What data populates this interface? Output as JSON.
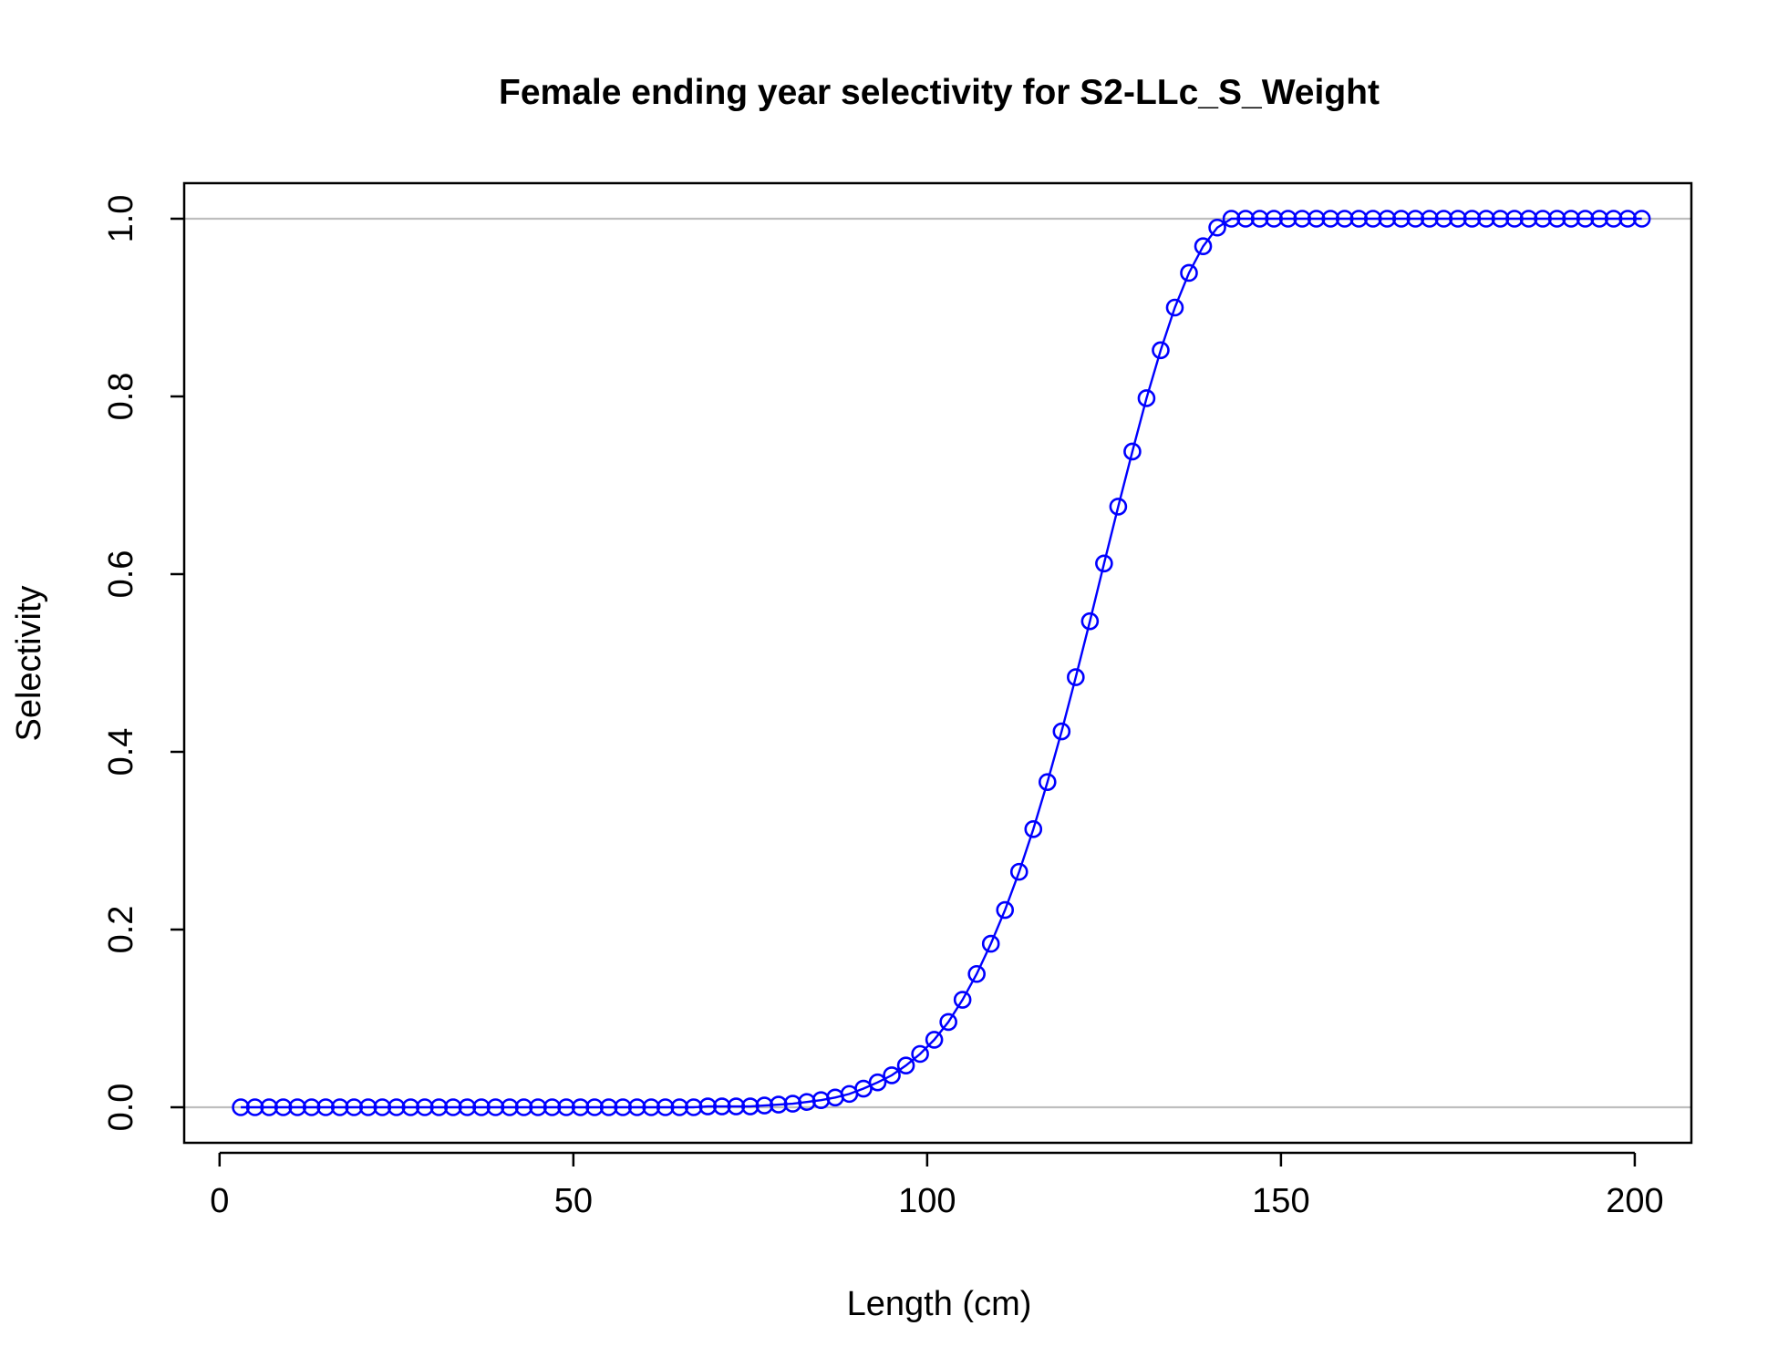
{
  "chart_data": {
    "type": "line",
    "title": "Female ending year selectivity for S2-LLc_S_Weight",
    "xlabel": "Length (cm)",
    "ylabel": "Selectivity",
    "xlim": [
      -5,
      208
    ],
    "ylim": [
      -0.04,
      1.04
    ],
    "x_ticks": [
      0,
      50,
      100,
      150,
      200
    ],
    "y_ticks": [
      0.0,
      0.2,
      0.4,
      0.6,
      0.8,
      1.0
    ],
    "x_tick_labels": [
      "0",
      "50",
      "100",
      "150",
      "200"
    ],
    "y_tick_labels": [
      "0.0",
      "0.2",
      "0.4",
      "0.6",
      "0.8",
      "1.0"
    ],
    "reference_lines_y": [
      0,
      1
    ],
    "colors": {
      "series": "#0000ff",
      "reference_line": "#bebebe",
      "axis": "#000000"
    },
    "marker": "open-circle",
    "grid": false,
    "series": [
      {
        "x": [
          3,
          5,
          7,
          9,
          11,
          13,
          15,
          17,
          19,
          21,
          23,
          25,
          27,
          29,
          31,
          33,
          35,
          37,
          39,
          41,
          43,
          45,
          47,
          49,
          51,
          53,
          55,
          57,
          59,
          61,
          63,
          65,
          67,
          69,
          71,
          73,
          75,
          77,
          79,
          81,
          83,
          85,
          87,
          89,
          91,
          93,
          95,
          97,
          99,
          101,
          103,
          105,
          107,
          109,
          111,
          113,
          115,
          117,
          119,
          121,
          123,
          125,
          127,
          129,
          131,
          133,
          135,
          137,
          139,
          141,
          143,
          145,
          147,
          149,
          151,
          153,
          155,
          157,
          159,
          161,
          163,
          165,
          167,
          169,
          171,
          173,
          175,
          177,
          179,
          181,
          183,
          185,
          187,
          189,
          191,
          193,
          195,
          197,
          199,
          201
        ],
        "y": [
          0,
          0,
          0,
          0,
          0,
          0,
          0,
          0,
          0,
          0,
          0,
          0,
          0,
          0,
          0,
          0,
          0,
          0,
          0,
          0,
          0,
          0,
          0,
          0,
          0,
          0,
          0,
          0,
          0,
          0,
          0,
          0,
          0,
          0.001,
          0.001,
          0.001,
          0.001,
          0.002,
          0.003,
          0.004,
          0.006,
          0.008,
          0.011,
          0.015,
          0.021,
          0.028,
          0.036,
          0.047,
          0.06,
          0.076,
          0.096,
          0.121,
          0.15,
          0.184,
          0.222,
          0.265,
          0.313,
          0.366,
          0.423,
          0.484,
          0.547,
          0.612,
          0.676,
          0.738,
          0.798,
          0.852,
          0.9,
          0.939,
          0.969,
          0.99,
          1,
          1,
          1,
          1,
          1,
          1,
          1,
          1,
          1,
          1,
          1,
          1,
          1,
          1,
          1,
          1,
          1,
          1,
          1,
          1,
          1,
          1,
          1,
          1,
          1,
          1,
          1,
          1,
          1,
          1
        ]
      }
    ]
  }
}
